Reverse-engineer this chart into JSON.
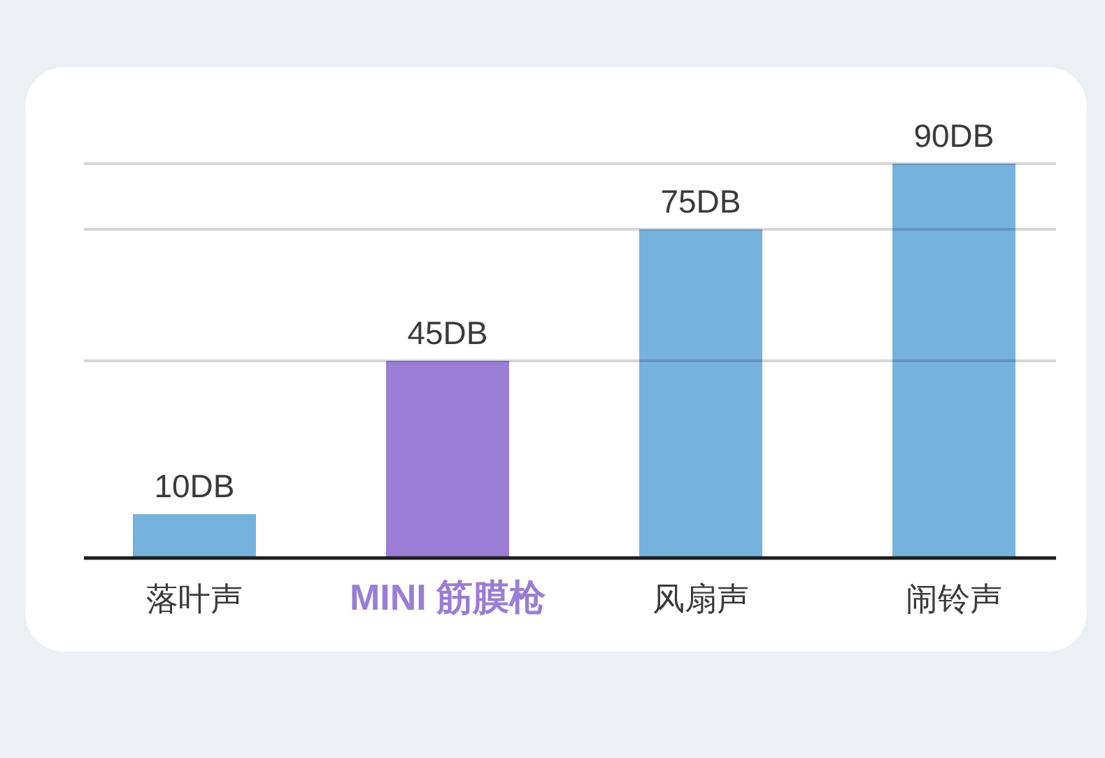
{
  "chart_data": {
    "type": "bar",
    "categories": [
      "落叶声",
      "MINI 筋膜枪",
      "风扇声",
      "闹铃声"
    ],
    "values": [
      10,
      45,
      75,
      90
    ],
    "value_labels": [
      "10DB",
      "45DB",
      "75DB",
      "90DB"
    ],
    "colors": [
      "#76b2de",
      "#9a7dd4",
      "#76b2de",
      "#76b2de"
    ],
    "ylim": [
      0,
      90
    ],
    "tick_labels": "x",
    "ref_lines": [
      {
        "axis": "y",
        "value": 45,
        "color": "#d6d6da"
      },
      {
        "axis": "y",
        "value": 75,
        "color": "#d6d6da"
      },
      {
        "axis": "y",
        "value": 90,
        "color": "#d6d6da"
      }
    ]
  }
}
